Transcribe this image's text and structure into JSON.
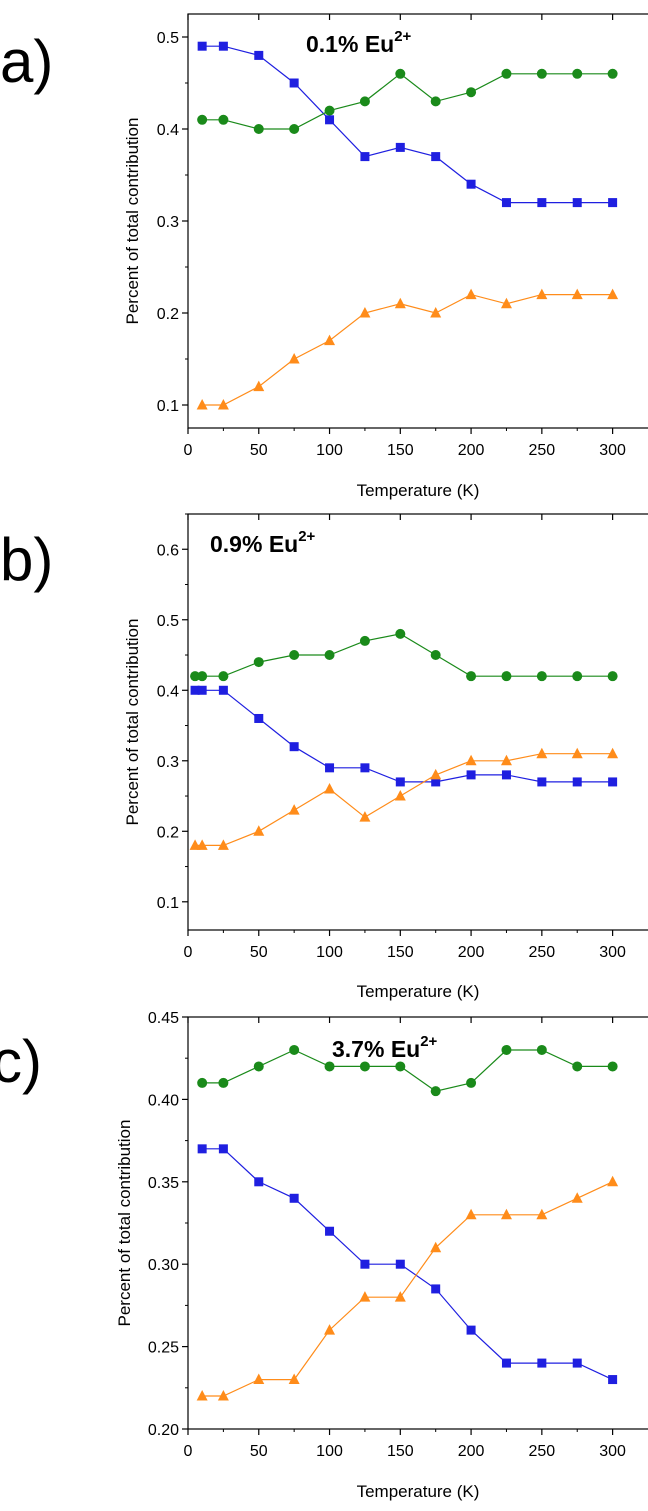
{
  "colors": {
    "blue": "#1f1fe0",
    "green": "#1a8a1a",
    "orange": "#ff8c1a"
  },
  "panels": [
    {
      "letter": "a)",
      "label": "0.1% Eu",
      "label_sup": "2+",
      "ylabel": "Percent of total contribution",
      "xlabel": "Temperature (K)",
      "xticks": [
        "0",
        "50",
        "100",
        "150",
        "200",
        "250",
        "300"
      ],
      "yticks": [
        "0.1",
        "0.2",
        "0.3",
        "0.4",
        "0.5"
      ]
    },
    {
      "letter": "b)",
      "label": "0.9% Eu",
      "label_sup": "2+",
      "ylabel": "Percent of total contribution",
      "xlabel": "Temperature (K)",
      "xticks": [
        "0",
        "50",
        "100",
        "150",
        "200",
        "250",
        "300"
      ],
      "yticks": [
        "0.1",
        "0.2",
        "0.3",
        "0.4",
        "0.5",
        "0.6"
      ]
    },
    {
      "letter": "c)",
      "label": "3.7% Eu",
      "label_sup": "2+",
      "ylabel": "Percent of total contribution",
      "xlabel": "Temperature (K)",
      "xticks": [
        "0",
        "50",
        "100",
        "150",
        "200",
        "250",
        "300"
      ],
      "yticks": [
        "0.20",
        "0.25",
        "0.30",
        "0.35",
        "0.40",
        "0.45"
      ]
    }
  ],
  "chart_data": [
    {
      "type": "line",
      "title": "0.1% Eu2+",
      "xlabel": "Temperature (K)",
      "ylabel": "Percent of total contribution",
      "xlim": [
        0,
        325
      ],
      "ylim": [
        0.075,
        0.525
      ],
      "xticks": [
        0,
        50,
        100,
        150,
        200,
        250,
        300
      ],
      "yticks": [
        0.1,
        0.2,
        0.3,
        0.4,
        0.5
      ],
      "series": [
        {
          "marker": "square",
          "color": "#1f1fe0",
          "x": [
            10,
            25,
            50,
            75,
            100,
            125,
            150,
            175,
            200,
            225,
            250,
            275,
            300
          ],
          "y": [
            0.49,
            0.49,
            0.48,
            0.45,
            0.41,
            0.37,
            0.38,
            0.37,
            0.34,
            0.32,
            0.32,
            0.32,
            0.32
          ]
        },
        {
          "marker": "circle",
          "color": "#1a8a1a",
          "x": [
            10,
            25,
            50,
            75,
            100,
            125,
            150,
            175,
            200,
            225,
            250,
            275,
            300
          ],
          "y": [
            0.41,
            0.41,
            0.4,
            0.4,
            0.42,
            0.43,
            0.46,
            0.43,
            0.44,
            0.46,
            0.46,
            0.46,
            0.46
          ]
        },
        {
          "marker": "triangle",
          "color": "#ff8c1a",
          "x": [
            10,
            25,
            50,
            75,
            100,
            125,
            150,
            175,
            200,
            225,
            250,
            275,
            300
          ],
          "y": [
            0.1,
            0.1,
            0.12,
            0.15,
            0.17,
            0.2,
            0.21,
            0.2,
            0.22,
            0.21,
            0.22,
            0.22,
            0.22
          ]
        }
      ]
    },
    {
      "type": "line",
      "title": "0.9% Eu2+",
      "xlabel": "Temperature (K)",
      "ylabel": "Percent of total contribution",
      "xlim": [
        0,
        325
      ],
      "ylim": [
        0.06,
        0.65
      ],
      "xticks": [
        0,
        50,
        100,
        150,
        200,
        250,
        300
      ],
      "yticks": [
        0.1,
        0.2,
        0.3,
        0.4,
        0.5,
        0.6
      ],
      "series": [
        {
          "marker": "square",
          "color": "#1f1fe0",
          "x": [
            5,
            10,
            25,
            50,
            75,
            100,
            125,
            150,
            175,
            200,
            225,
            250,
            275,
            300
          ],
          "y": [
            0.4,
            0.4,
            0.4,
            0.36,
            0.32,
            0.29,
            0.29,
            0.27,
            0.27,
            0.28,
            0.28,
            0.27,
            0.27,
            0.27
          ]
        },
        {
          "marker": "circle",
          "color": "#1a8a1a",
          "x": [
            5,
            10,
            25,
            50,
            75,
            100,
            125,
            150,
            175,
            200,
            225,
            250,
            275,
            300
          ],
          "y": [
            0.42,
            0.42,
            0.42,
            0.44,
            0.45,
            0.45,
            0.47,
            0.48,
            0.45,
            0.42,
            0.42,
            0.42,
            0.42,
            0.42
          ]
        },
        {
          "marker": "triangle",
          "color": "#ff8c1a",
          "x": [
            5,
            10,
            25,
            50,
            75,
            100,
            125,
            150,
            175,
            200,
            225,
            250,
            275,
            300
          ],
          "y": [
            0.18,
            0.18,
            0.18,
            0.2,
            0.23,
            0.26,
            0.22,
            0.25,
            0.28,
            0.3,
            0.3,
            0.31,
            0.31,
            0.31
          ]
        }
      ]
    },
    {
      "type": "line",
      "title": "3.7% Eu2+",
      "xlabel": "Temperature (K)",
      "ylabel": "Percent of total contribution",
      "xlim": [
        0,
        325
      ],
      "ylim": [
        0.2,
        0.45
      ],
      "xticks": [
        0,
        50,
        100,
        150,
        200,
        250,
        300
      ],
      "yticks": [
        0.2,
        0.25,
        0.3,
        0.35,
        0.4,
        0.45
      ],
      "series": [
        {
          "marker": "square",
          "color": "#1f1fe0",
          "x": [
            10,
            25,
            50,
            75,
            100,
            125,
            150,
            175,
            200,
            225,
            250,
            275,
            300
          ],
          "y": [
            0.37,
            0.37,
            0.35,
            0.34,
            0.32,
            0.3,
            0.3,
            0.285,
            0.26,
            0.24,
            0.24,
            0.24,
            0.23
          ]
        },
        {
          "marker": "circle",
          "color": "#1a8a1a",
          "x": [
            10,
            25,
            50,
            75,
            100,
            125,
            150,
            175,
            200,
            225,
            250,
            275,
            300
          ],
          "y": [
            0.41,
            0.41,
            0.42,
            0.43,
            0.42,
            0.42,
            0.42,
            0.405,
            0.41,
            0.43,
            0.43,
            0.42,
            0.42
          ]
        },
        {
          "marker": "triangle",
          "color": "#ff8c1a",
          "x": [
            10,
            25,
            50,
            75,
            100,
            125,
            150,
            175,
            200,
            225,
            250,
            275,
            300
          ],
          "y": [
            0.22,
            0.22,
            0.23,
            0.23,
            0.26,
            0.28,
            0.28,
            0.31,
            0.33,
            0.33,
            0.33,
            0.34,
            0.35
          ]
        }
      ]
    }
  ]
}
